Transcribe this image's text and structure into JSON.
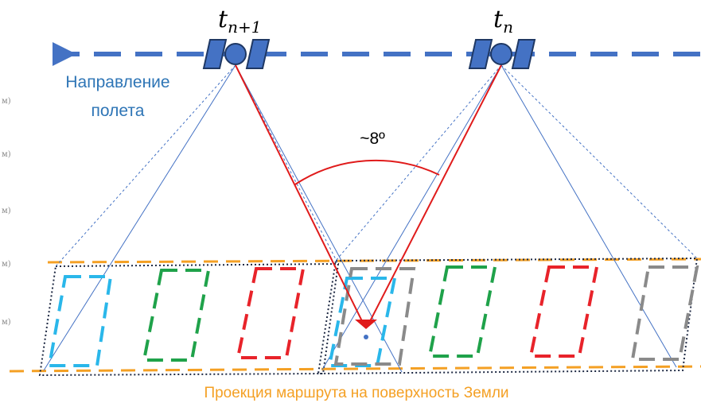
{
  "labels": {
    "flight_direction_line1": "Направление",
    "flight_direction_line2": "полета",
    "angle": "~8º",
    "ground_projection": "Проекция маршрута на поверхность Земли"
  },
  "satellites": [
    {
      "id": "satellite-t-n-plus-1",
      "time_base": "t",
      "time_sub": "n+1"
    },
    {
      "id": "satellite-t-n",
      "time_base": "t",
      "time_sub": "n"
    }
  ],
  "background_faint_labels": [
    "м)",
    "м)",
    "м)",
    "м)",
    "м)"
  ],
  "frame_colors": [
    "#2ab7ea",
    "#1fa24a",
    "#e8232a",
    "#8a8a8a"
  ],
  "colors": {
    "flight_path": "#4472c4",
    "ground_track": "#f4a024",
    "view_ray": "#e01b1b",
    "fov_line": "#4472c4",
    "footprint_border": "#1f2a44"
  }
}
